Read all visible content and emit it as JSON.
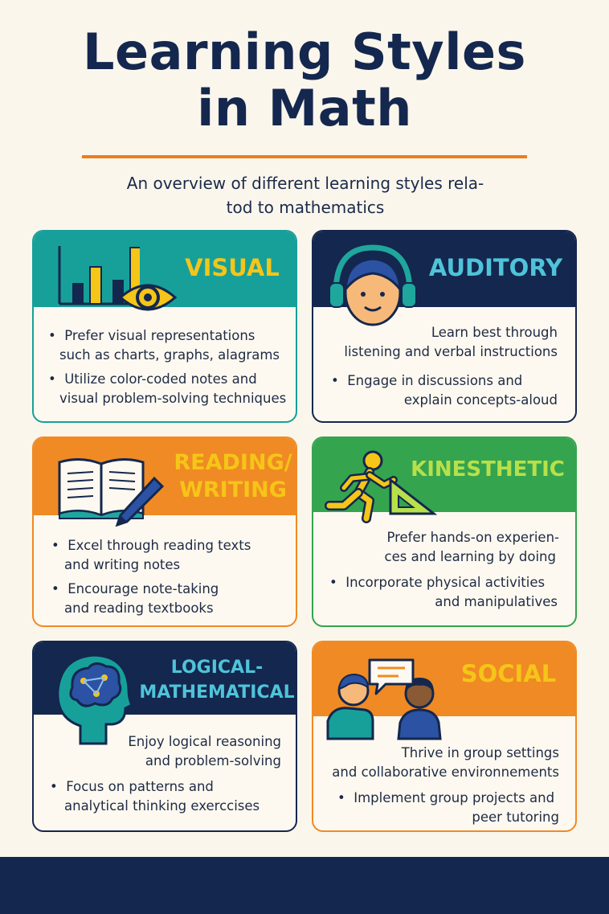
{
  "header": {
    "title_line1": "Learning Styles",
    "title_line2": "in Math",
    "subtitle_line1": "An overview of different learning styles rela-",
    "subtitle_line2": "tod to mathematics"
  },
  "colors": {
    "teal": "#17a09a",
    "navy": "#14274e",
    "orange": "#f08a24",
    "green": "#35a44f",
    "yellow": "#f5c518",
    "lime": "#b8e04a",
    "cyan": "#4fc3d9"
  },
  "cards": {
    "visual": {
      "label": "VISUAL",
      "icons": [
        "bar-chart-icon",
        "eye-icon"
      ],
      "b1a": "Prefer visual representations",
      "b1b": "such as charts, graphs, alagrams",
      "b2a": "Utilize color-coded notes and",
      "b2b": "visual problem-solving techniques"
    },
    "auditory": {
      "label": "AUDITORY",
      "icons": [
        "headphones-person-icon"
      ],
      "t1a": "Learn best through",
      "t1b": "listening and verbal instructions",
      "b1a": "Engage in discussions and",
      "b1b": "explain concepts-aloud"
    },
    "reading": {
      "label1": "READING/",
      "label2": "WRITING",
      "icons": [
        "open-book-icon",
        "pencil-icon"
      ],
      "b1a": "Excel through reading texts",
      "b1b": "and writing notes",
      "b2a": "Encourage note-taking",
      "b2b": "and reading textbooks"
    },
    "kinesthetic": {
      "label": "KINESTHETIC",
      "icons": [
        "running-person-icon",
        "set-square-icon"
      ],
      "t1a": "Prefer hands-on experien-",
      "t1b": "ces and learning by doing",
      "b1a": "Incorporate physical activities",
      "b1b": "and manipulatives"
    },
    "logical": {
      "label1": "LOGICAL-",
      "label2": "MATHEMATICAL",
      "icons": [
        "head-brain-icon"
      ],
      "t1a": "Enjoy logical reasoning",
      "t1b": "and problem-solving",
      "b1a": "Focus on patterns and",
      "b1b": "analytical thinking exerccises"
    },
    "social": {
      "label": "SOCIAL",
      "icons": [
        "two-people-talking-icon",
        "speech-bubble-icon"
      ],
      "t1a": "Thrive in group settings",
      "t1b": "and collaborative environnements",
      "b1a": "Implement group projects and",
      "b1b": "peer tutoring"
    }
  }
}
